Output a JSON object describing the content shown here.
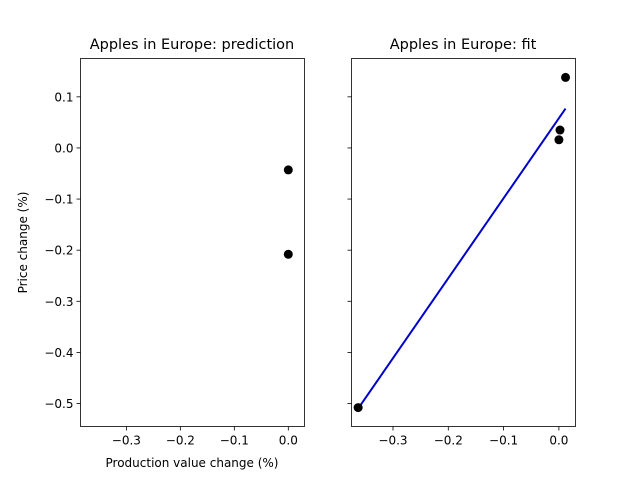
{
  "chart_data": [
    {
      "type": "scatter",
      "title": "Apples in Europe: prediction",
      "xlabel": "Production value change (%)",
      "ylabel": "Price change (%)",
      "xlim": [
        -0.385,
        0.03
      ],
      "ylim": [
        -0.545,
        0.175
      ],
      "xticks": [
        -0.3,
        -0.2,
        -0.1,
        0.0
      ],
      "xtick_labels": [
        "−0.3",
        "−0.2",
        "−0.1",
        "0.0"
      ],
      "yticks": [
        0.1,
        0.0,
        -0.1,
        -0.2,
        -0.3,
        -0.4,
        -0.5
      ],
      "ytick_labels": [
        "0.1",
        "0.0",
        "−0.1",
        "−0.2",
        "−0.3",
        "−0.4",
        "−0.5"
      ],
      "series": [
        {
          "points": [
            [
              0.0,
              -0.043
            ],
            [
              0.0,
              -0.208
            ]
          ],
          "color": "#000000"
        }
      ]
    },
    {
      "type": "scatter",
      "title": "Apples in Europe: fit",
      "xlabel": "",
      "ylabel": "",
      "xlim": [
        -0.375,
        0.03
      ],
      "ylim": [
        -0.545,
        0.175
      ],
      "xticks": [
        -0.3,
        -0.2,
        -0.1,
        0.0
      ],
      "xtick_labels": [
        "−0.3",
        "−0.2",
        "−0.1",
        "0.0"
      ],
      "yticks": [
        0.1,
        0.0,
        -0.1,
        -0.2,
        -0.3,
        -0.4,
        -0.5
      ],
      "ytick_labels": [],
      "shared_y": true,
      "series": [
        {
          "points": [
            [
              -0.363,
              -0.508
            ],
            [
              0.0,
              0.016
            ],
            [
              0.002,
              0.035
            ],
            [
              0.012,
              0.138
            ]
          ],
          "color": "#000000"
        }
      ],
      "fit_line": {
        "points": [
          [
            -0.363,
            -0.51
          ],
          [
            0.012,
            0.077
          ]
        ],
        "color": "#0000cc"
      }
    }
  ]
}
